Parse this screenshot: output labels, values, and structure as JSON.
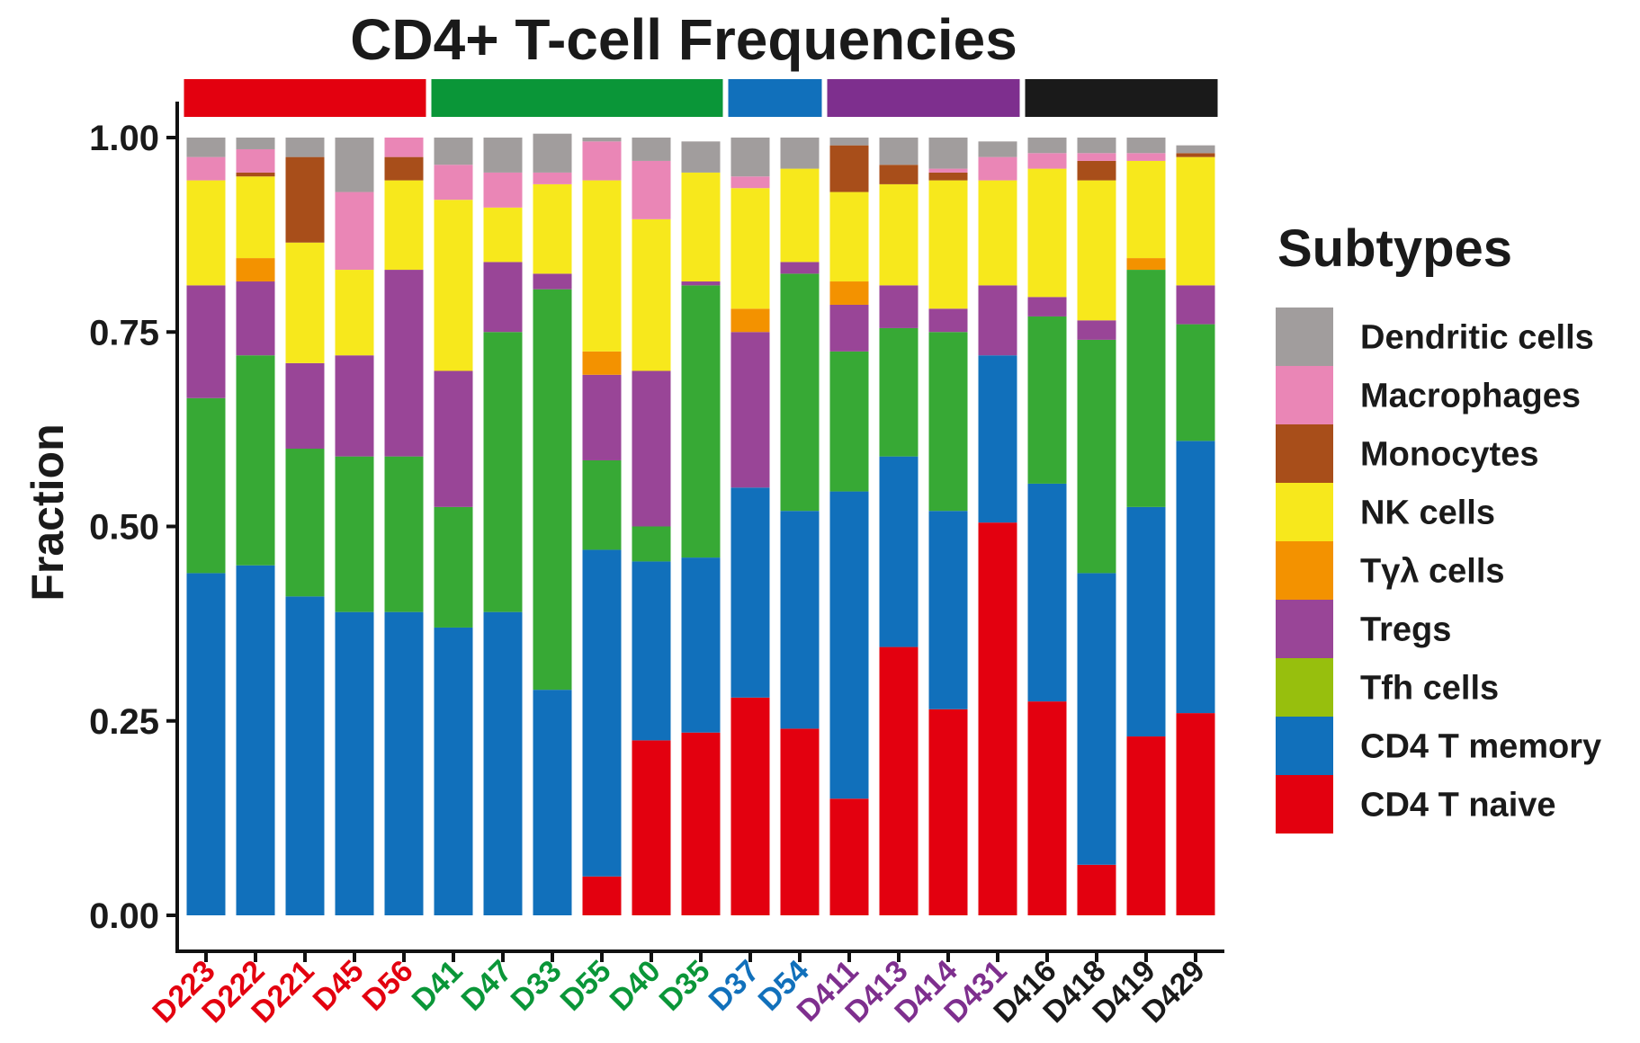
{
  "chart_data": {
    "type": "bar",
    "stacked": true,
    "title": "CD4+ T-cell Frequencies",
    "xlabel": "",
    "ylabel": "Fraction",
    "ylim": [
      0,
      1
    ],
    "yticks": [
      "0.00",
      "0.25",
      "0.50",
      "0.75",
      "1.00"
    ],
    "categories": [
      "D223",
      "D222",
      "D221",
      "D45",
      "D56",
      "D41",
      "D47",
      "D33",
      "D55",
      "D40",
      "D35",
      "D37",
      "D54",
      "D411",
      "D413",
      "D414",
      "D431",
      "D416",
      "D418",
      "D419",
      "D429"
    ],
    "category_groups": [
      {
        "color": "#e3000f",
        "members": [
          "D223",
          "D222",
          "D221",
          "D45",
          "D56"
        ]
      },
      {
        "color": "#0a9638",
        "members": [
          "D41",
          "D47",
          "D33",
          "D55",
          "D40",
          "D35"
        ]
      },
      {
        "color": "#1170bb",
        "members": [
          "D37",
          "D54"
        ]
      },
      {
        "color": "#7e2f8e",
        "members": [
          "D411",
          "D413",
          "D414",
          "D431"
        ]
      },
      {
        "color": "#1a1a1a",
        "members": [
          "D416",
          "D418",
          "D419",
          "D429"
        ]
      }
    ],
    "legend_title": "Subtypes",
    "legend_position": "right",
    "series": [
      {
        "name": "CD4 T naive",
        "color": "#e3000f",
        "values": [
          0,
          0,
          0,
          0,
          0,
          0,
          0,
          0,
          0.05,
          0.225,
          0.235,
          0.28,
          0.24,
          0.15,
          0.345,
          0.265,
          0.505,
          0.275,
          0.065,
          0.23,
          0.26
        ]
      },
      {
        "name": "CD4 T memory",
        "color": "#1170bb",
        "values": [
          0.44,
          0.45,
          0.41,
          0.39,
          0.39,
          0.37,
          0.39,
          0.29,
          0.42,
          0.23,
          0.225,
          0.27,
          0.28,
          0.395,
          0.245,
          0.255,
          0.215,
          0.28,
          0.375,
          0.295,
          0.35
        ]
      },
      {
        "name": "Tfh cells",
        "color": "#37a935",
        "values": [
          0.225,
          0.27,
          0.19,
          0.2,
          0.2,
          0.155,
          0.36,
          0.515,
          0.115,
          0.045,
          0.35,
          0,
          0.305,
          0.18,
          0.165,
          0.23,
          0,
          0.215,
          0.3,
          0.305,
          0.15
        ]
      },
      {
        "name": "Tregs",
        "color": "#994597",
        "values": [
          0.145,
          0.095,
          0.11,
          0.13,
          0.24,
          0.175,
          0.09,
          0.02,
          0.11,
          0.2,
          0.005,
          0.2,
          0.015,
          0.06,
          0.055,
          0.03,
          0.09,
          0.025,
          0.025,
          0,
          0.05
        ]
      },
      {
        "name": "Tγλ cells",
        "color": "#f39200",
        "values": [
          0,
          0.03,
          0,
          0,
          0,
          0,
          0,
          0,
          0.03,
          0,
          0,
          0.03,
          0,
          0.03,
          0,
          0,
          0,
          0,
          0,
          0.015,
          0
        ]
      },
      {
        "name": "NK cells",
        "color": "#f7e81c",
        "values": [
          0.135,
          0.105,
          0.155,
          0.11,
          0.115,
          0.22,
          0.07,
          0.115,
          0.22,
          0.195,
          0.14,
          0.155,
          0.12,
          0.115,
          0.13,
          0.165,
          0.135,
          0.165,
          0.18,
          0.125,
          0.165
        ]
      },
      {
        "name": "Monocytes",
        "color": "#a84e1a",
        "values": [
          0,
          0.005,
          0.11,
          0,
          0.03,
          0,
          0,
          0,
          0,
          0,
          0,
          0,
          0,
          0.06,
          0.025,
          0.01,
          0,
          0,
          0.025,
          0,
          0.005
        ]
      },
      {
        "name": "Macrophages",
        "color": "#ea86b6",
        "values": [
          0.03,
          0.03,
          0,
          0.1,
          0.025,
          0.045,
          0.045,
          0.015,
          0.05,
          0.075,
          0,
          0.015,
          0,
          0,
          0,
          0.005,
          0.03,
          0.02,
          0.01,
          0.01,
          0
        ]
      },
      {
        "name": "Dendritic cells",
        "color": "#a19d9d",
        "values": [
          0.025,
          0.015,
          0.025,
          0.07,
          0,
          0.035,
          0.045,
          0.05,
          0.005,
          0.03,
          0.04,
          0.05,
          0.04,
          0.01,
          0.035,
          0.04,
          0.02,
          0.02,
          0.02,
          0.02,
          0.01
        ]
      }
    ],
    "legend_order": [
      "Dendritic cells",
      "Macrophages",
      "Monocytes",
      "NK cells",
      "Tγλ cells",
      "Tregs",
      "Tfh cells",
      "CD4 T memory",
      "CD4 T naive"
    ]
  },
  "legend_items": [
    {
      "name": "Dendritic cells",
      "color": "#a19d9d"
    },
    {
      "name": "Macrophages",
      "color": "#ea86b6"
    },
    {
      "name": "Monocytes",
      "color": "#a84e1a"
    },
    {
      "name": "NK cells",
      "color": "#f7e81c"
    },
    {
      "name": "Tγλ cells",
      "color": "#f39200"
    },
    {
      "name": "Tregs",
      "color": "#994597"
    },
    {
      "name": "Tfh cells",
      "color": "#97bf0d"
    },
    {
      "name": "CD4 T memory",
      "color": "#1170bb"
    },
    {
      "name": "CD4 T naive",
      "color": "#e3000f"
    }
  ]
}
